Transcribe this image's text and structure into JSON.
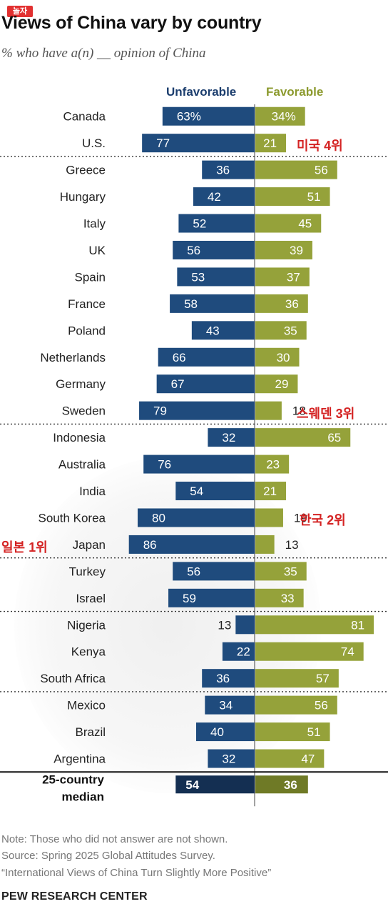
{
  "badge": "놀자",
  "title": "Views of China vary by country",
  "subtitle": "% who have a(n) __ opinion of China",
  "legend": {
    "unfavorable": "Unfavorable",
    "favorable": "Favorable"
  },
  "colors": {
    "unfavorable": "#1f4b7d",
    "favorable": "#95a23a",
    "median_unfavorable": "#142f52",
    "median_favorable": "#6f7a26",
    "annotation": "#d42323"
  },
  "chart_data": {
    "type": "bar",
    "orientation": "horizontal-diverging",
    "categories": [
      "Canada",
      "U.S.",
      "Greece",
      "Hungary",
      "Italy",
      "UK",
      "Spain",
      "France",
      "Poland",
      "Netherlands",
      "Germany",
      "Sweden",
      "Indonesia",
      "Australia",
      "India",
      "South Korea",
      "Japan",
      "Turkey",
      "Israel",
      "Nigeria",
      "Kenya",
      "South Africa",
      "Mexico",
      "Brazil",
      "Argentina"
    ],
    "series": [
      {
        "name": "Unfavorable",
        "values": [
          63,
          77,
          36,
          42,
          52,
          56,
          53,
          58,
          43,
          66,
          67,
          79,
          32,
          76,
          54,
          80,
          86,
          56,
          59,
          13,
          22,
          36,
          34,
          40,
          32
        ]
      },
      {
        "name": "Favorable",
        "values": [
          34,
          21,
          56,
          51,
          45,
          39,
          37,
          36,
          35,
          30,
          29,
          18,
          65,
          23,
          21,
          19,
          13,
          35,
          33,
          81,
          74,
          57,
          56,
          51,
          47
        ]
      }
    ],
    "first_row_labels": {
      "unfavorable": "63%",
      "favorable": "34%"
    },
    "group_breaks_after": [
      "U.S.",
      "Sweden",
      "Japan",
      "Israel",
      "South Africa",
      "Argentina"
    ],
    "median": {
      "label_line1": "25-country",
      "label_line2": "median",
      "unfavorable": 54,
      "favorable": 36
    }
  },
  "annotations": [
    {
      "country": "U.S.",
      "text": "미국 4위"
    },
    {
      "country": "Sweden",
      "text": "스웨덴 3위"
    },
    {
      "country": "South Korea",
      "text": "한국 2위"
    },
    {
      "country": "Japan",
      "text": "일본 1위"
    }
  ],
  "footer": {
    "note": "Note: Those who did not answer are not shown.",
    "source": "Source: Spring 2025 Global Attitudes Survey.",
    "report": "“International Views of China Turn Slightly More Positive”",
    "brand": "PEW RESEARCH CENTER"
  }
}
